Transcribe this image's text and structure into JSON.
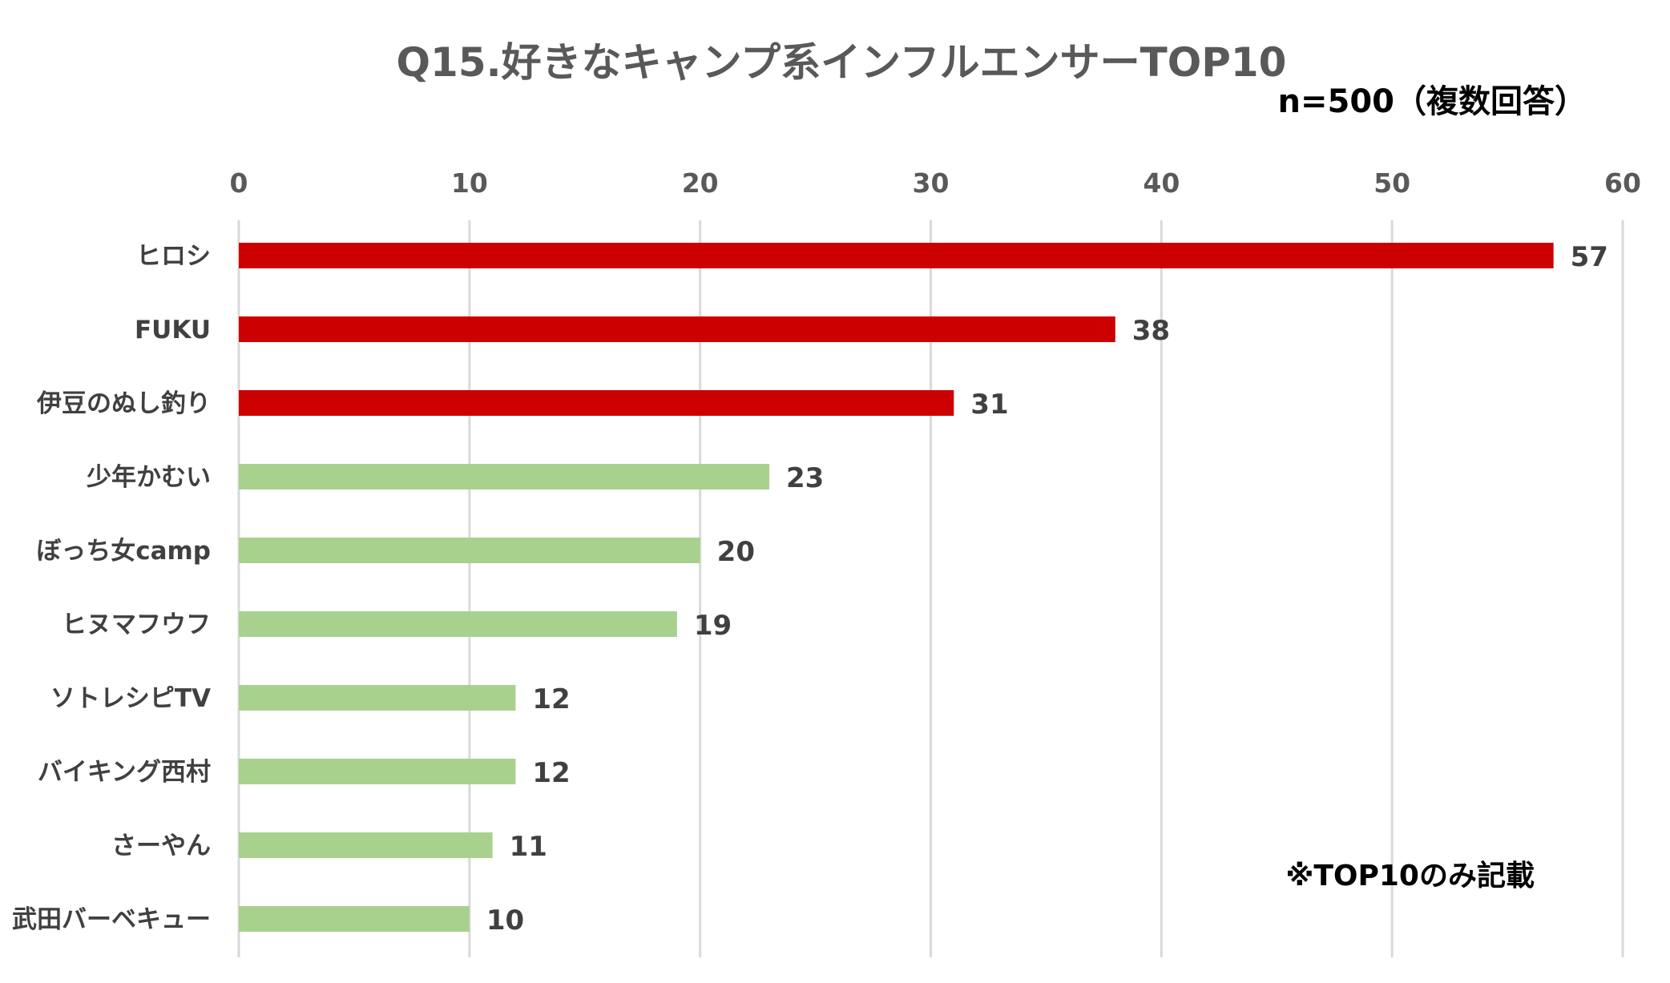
{
  "chart_data": {
    "type": "bar",
    "orientation": "horizontal",
    "title": "Q15.好きなキャンプ系インフルエンサーTOP10",
    "subtitle": "n=500（複数回答）",
    "note": "※TOP10のみ記載",
    "categories": [
      "ヒロシ",
      "FUKU",
      "伊豆のぬし釣り",
      "少年かむい",
      "ぼっち女camp",
      "ヒヌマフウフ",
      "ソトレシピTV",
      "バイキング西村",
      "さーやん",
      "武田バーベキュー"
    ],
    "values": [
      57,
      38,
      31,
      23,
      20,
      19,
      12,
      12,
      11,
      10
    ],
    "value_labels": [
      "57",
      "38",
      "31",
      "23",
      "20",
      "19",
      "12",
      "12",
      "11",
      "10"
    ],
    "bar_colors": [
      "#cc0000",
      "#cc0000",
      "#cc0000",
      "#a9d18e",
      "#a9d18e",
      "#a9d18e",
      "#a9d18e",
      "#a9d18e",
      "#a9d18e",
      "#a9d18e"
    ],
    "xlim": [
      0,
      60
    ],
    "x_ticks": [
      0,
      10,
      20,
      30,
      40,
      50,
      60
    ],
    "x_tick_labels": [
      "0",
      "10",
      "20",
      "30",
      "40",
      "50",
      "60"
    ],
    "x_axis_position": "top",
    "grid": true,
    "legend": false
  },
  "colors": {
    "top3": "#cc0000",
    "others": "#a9d18e",
    "gridline": "#d9d9d9",
    "title": "#595959",
    "labels": "#404040"
  }
}
